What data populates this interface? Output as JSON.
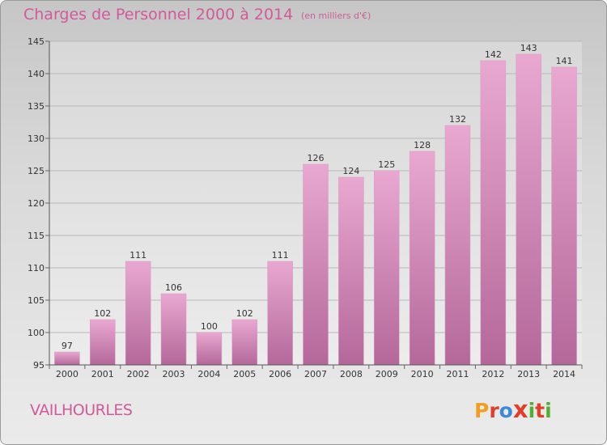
{
  "header": {
    "title": "Charges de Personnel 2000 à 2014",
    "subtitle": "(en milliers d'€)"
  },
  "footer": {
    "commune": "VAILHOURLES",
    "logo_letters": [
      "P",
      "r",
      "o",
      "x",
      "i",
      "t",
      "i"
    ]
  },
  "colors": {
    "text_accent": "#d05a9a",
    "bar_top": "#e8a8d0",
    "bar_bottom": "#b4689a",
    "logo": [
      "#f0a020",
      "#e0402a",
      "#3a8ad8",
      "#e0402a",
      "#50b030",
      "#e0402a",
      "#50b030"
    ]
  },
  "chart_data": {
    "type": "bar",
    "title": "Charges de Personnel 2000 à 2014",
    "subtitle": "(en milliers d'€)",
    "categories": [
      "2000",
      "2001",
      "2002",
      "2003",
      "2004",
      "2005",
      "2006",
      "2007",
      "2008",
      "2009",
      "2010",
      "2011",
      "2012",
      "2013",
      "2014"
    ],
    "values": [
      97,
      102,
      111,
      106,
      100,
      102,
      111,
      126,
      124,
      125,
      128,
      132,
      142,
      143,
      141
    ],
    "ylim": [
      95,
      145
    ],
    "yticks": [
      "95",
      "100",
      "105",
      "110",
      "115",
      "120",
      "125",
      "130",
      "135",
      "140",
      "145"
    ],
    "grid": true,
    "legend": "none"
  }
}
